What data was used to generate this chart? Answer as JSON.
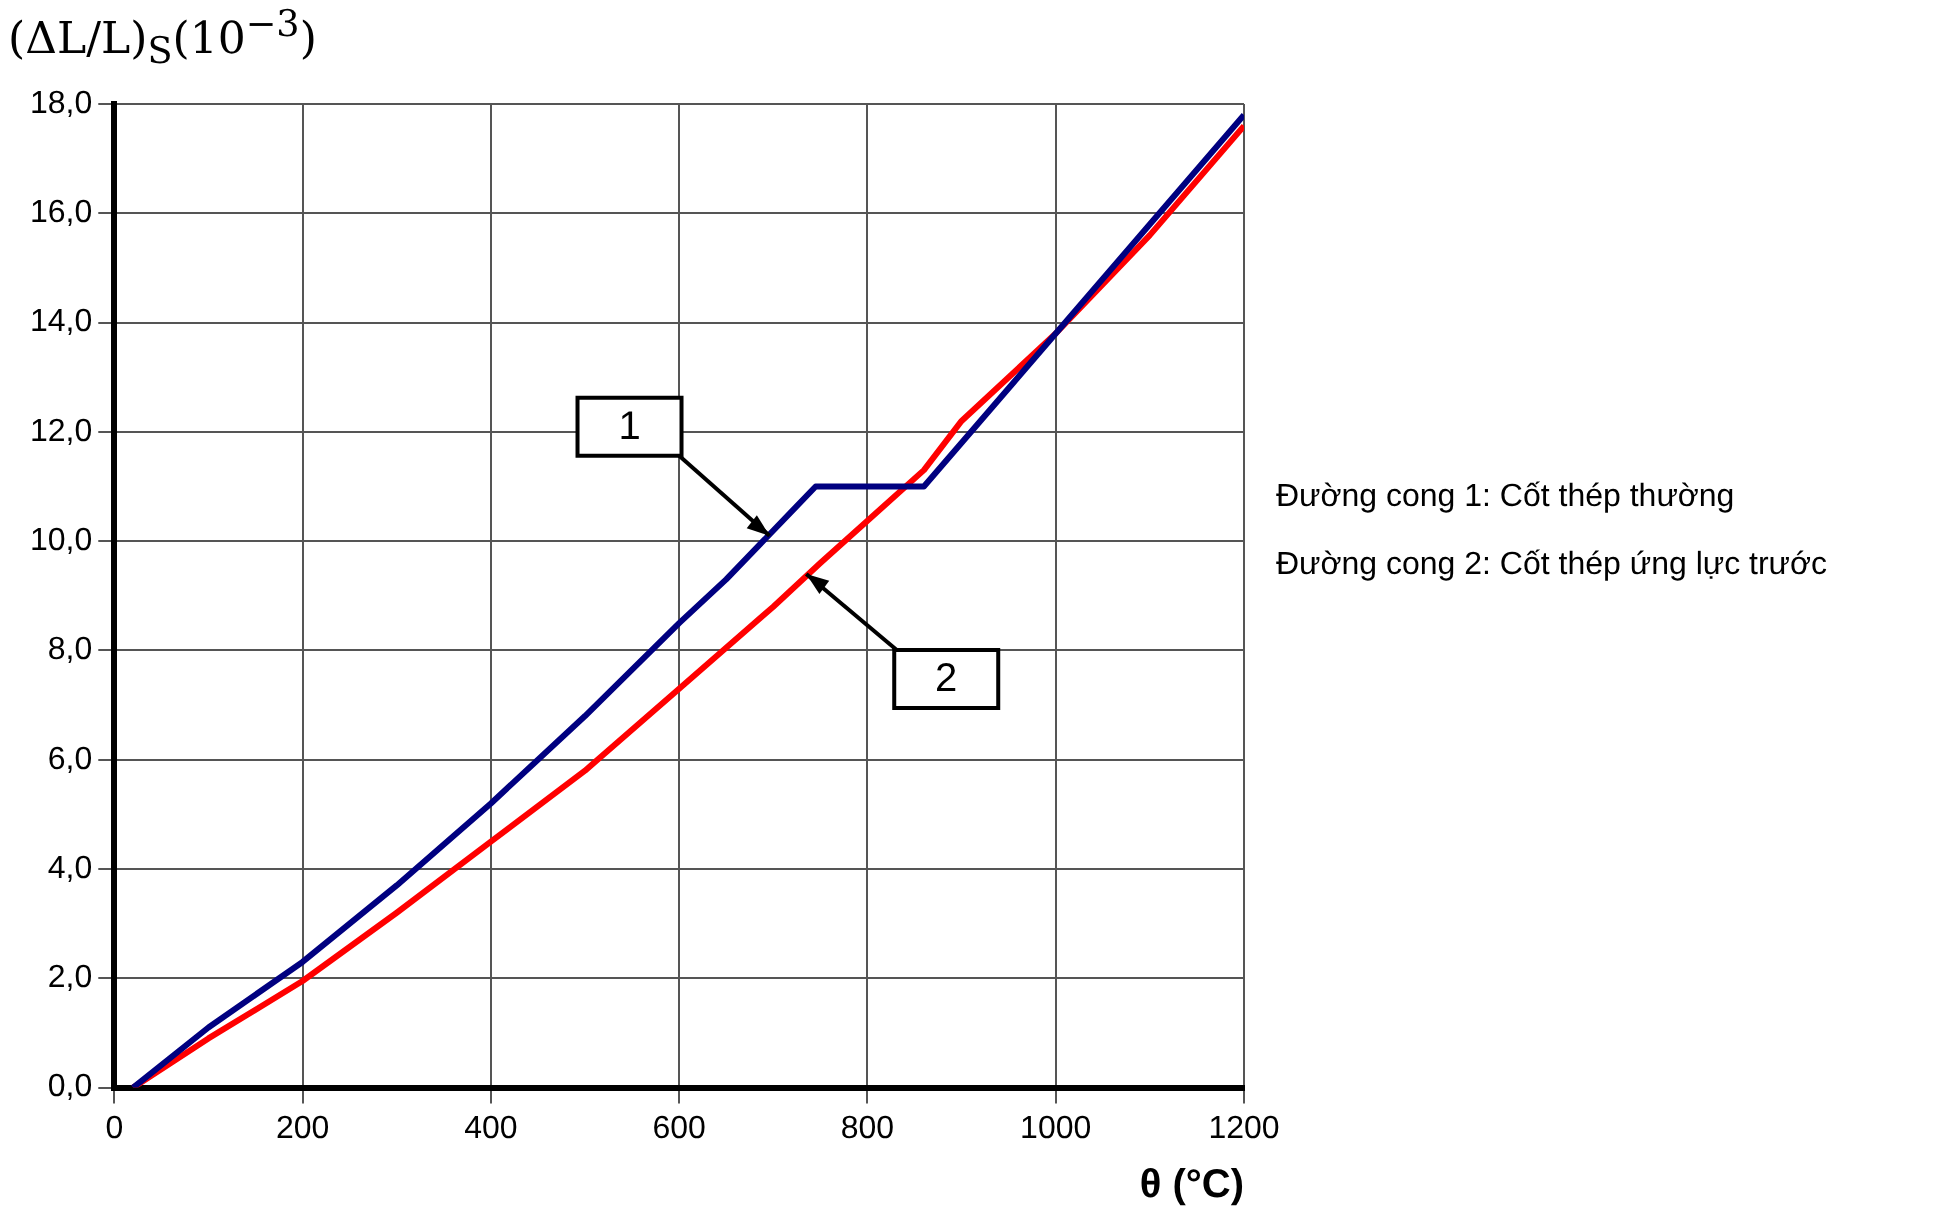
{
  "chart_data": {
    "type": "line",
    "ylabel": "(ΔL/L)$_{S}$(10$^{−3}$)",
    "xlabel": "θ (°C)",
    "xlim": [
      0,
      1200
    ],
    "xticks": [
      0,
      200,
      400,
      600,
      800,
      1000,
      1200
    ],
    "ylim": [
      0,
      18
    ],
    "yticks": [
      {
        "value": 0,
        "label": "0,0"
      },
      {
        "value": 2,
        "label": "2,0"
      },
      {
        "value": 4,
        "label": "4,0"
      },
      {
        "value": 6,
        "label": "6,0"
      },
      {
        "value": 8,
        "label": "8,0"
      },
      {
        "value": 10,
        "label": "10,0"
      },
      {
        "value": 12,
        "label": "12,0"
      },
      {
        "value": 14,
        "label": "14,0"
      },
      {
        "value": 16,
        "label": "16,0"
      },
      {
        "value": 18,
        "label": "18,0"
      }
    ],
    "grid": true,
    "legend": false,
    "marker": "none",
    "line_style": "solid",
    "series": [
      {
        "color": "#000080",
        "x": [
          20,
          100,
          200,
          300,
          400,
          500,
          600,
          650,
          745,
          860,
          1000,
          1100,
          1200
        ],
        "values": [
          0,
          1.1,
          2.3,
          3.7,
          5.2,
          6.8,
          8.5,
          9.3,
          11.0,
          11.0,
          13.8,
          15.8,
          17.8
        ]
      },
      {
        "color": "#ff0000",
        "x": [
          20,
          100,
          200,
          300,
          400,
          500,
          600,
          700,
          750,
          860,
          900,
          1000,
          1100,
          1200
        ],
        "values": [
          0,
          0.9,
          1.95,
          3.2,
          4.5,
          5.8,
          7.3,
          8.8,
          9.6,
          11.3,
          12.2,
          13.8,
          15.6,
          17.6
        ]
      }
    ],
    "annotations": [
      {
        "text": "1",
        "x": 696,
        "y": 10.1
      },
      {
        "text": "2",
        "x": 735,
        "y": 9.4
      },
      "Đường cong 1: Cốt thép thường",
      "Đường cong 2: Cốt thép ứng lực trước"
    ]
  }
}
